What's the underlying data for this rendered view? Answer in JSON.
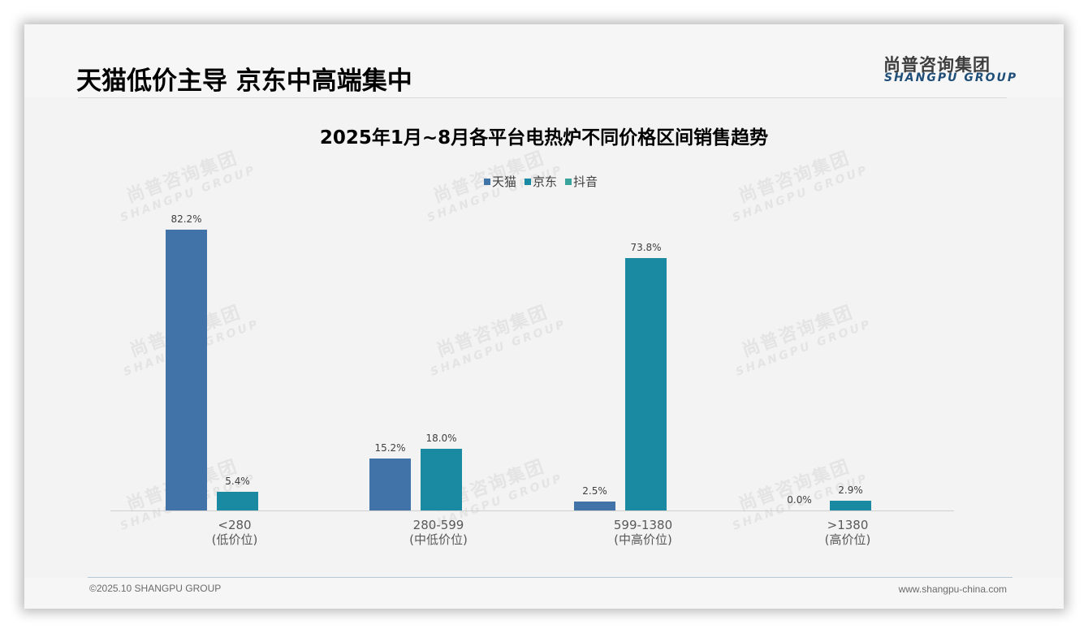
{
  "slide": {
    "title": "天猫低价主导 京东中高端集中",
    "logo_cn": "尚普咨询集团",
    "logo_en": "SHANGPU GROUP",
    "watermark_cn": "尚普咨询集团",
    "watermark_en": "SHANGPU GROUP",
    "footer_left": "©2025.10 SHANGPU GROUP",
    "footer_right": "www.shangpu-china.com"
  },
  "legend": [
    {
      "label": "天猫",
      "color": "#4173a8"
    },
    {
      "label": "京东",
      "color": "#1a8aa3"
    },
    {
      "label": "抖音",
      "color": "#3aa39a"
    }
  ],
  "categories_display": [
    {
      "range": "<280",
      "tier": "(低价位)"
    },
    {
      "range": "280-599",
      "tier": "(中低价位)"
    },
    {
      "range": "599-1380",
      "tier": "(中高价位)"
    },
    {
      "range": ">1380",
      "tier": "(高价位)"
    }
  ],
  "labels": {
    "tmall": [
      "82.2%",
      "15.2%",
      "2.5%",
      "0.0%"
    ],
    "jd": [
      "5.4%",
      "18.0%",
      "73.8%",
      "2.9%"
    ]
  },
  "chart_data": {
    "type": "bar",
    "title": "2025年1月~8月各平台电热炉不同价格区间销售趋势",
    "categories": [
      "<280\n(低价位)",
      "280-599\n(中低价位)",
      "599-1380\n(中高价位)",
      ">1380\n(高价位)"
    ],
    "series": [
      {
        "name": "天猫",
        "color": "#4173a8",
        "values": [
          82.2,
          15.2,
          2.5,
          0.0
        ]
      },
      {
        "name": "京东",
        "color": "#1a8aa3",
        "values": [
          5.4,
          18.0,
          73.8,
          2.9
        ]
      },
      {
        "name": "抖音",
        "color": "#3aa39a",
        "values": [
          null,
          null,
          null,
          null
        ]
      }
    ],
    "xlabel": "",
    "ylabel": "",
    "value_format": "percent, 1 decimal",
    "ylim": [
      0,
      85
    ],
    "grid": false,
    "y_axis_visible": false,
    "legend_position": "top"
  }
}
